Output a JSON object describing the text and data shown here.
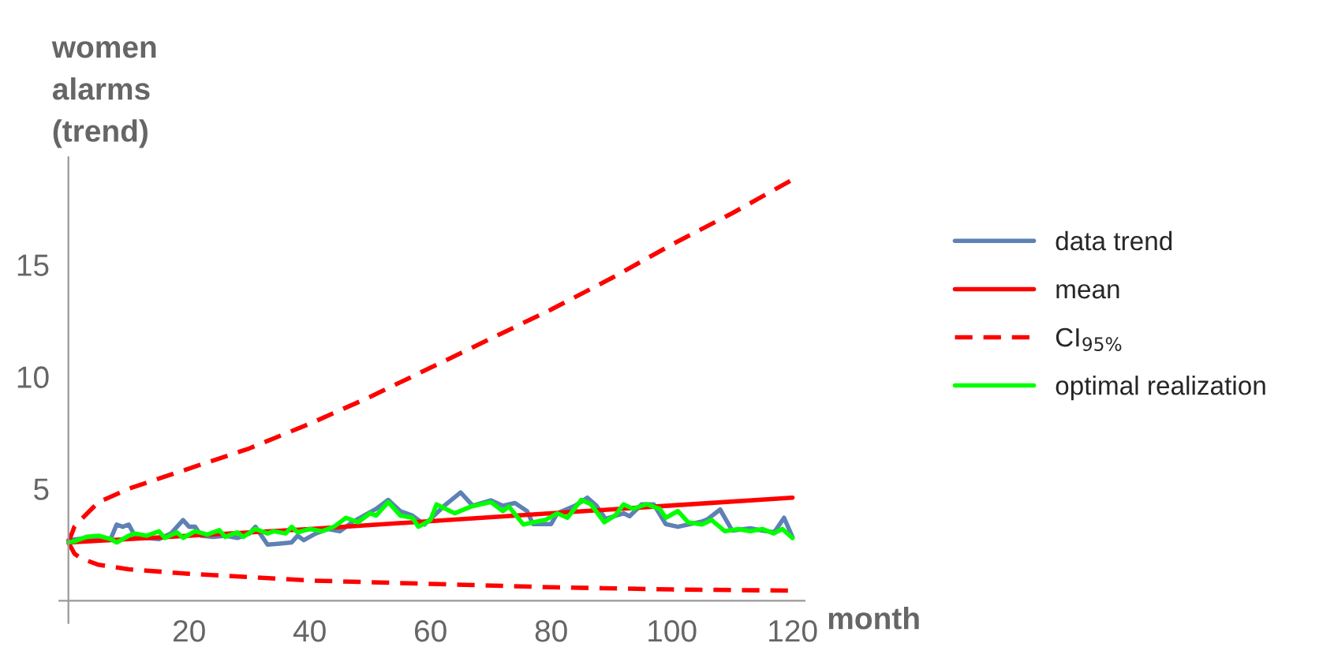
{
  "chart_data": {
    "type": "line",
    "xlabel": "month",
    "ylabel": "women\nalarms\n(trend)",
    "xlim": [
      -1.5,
      122
    ],
    "ylim": [
      -1.0,
      19.8
    ],
    "xticks": [
      20,
      40,
      60,
      80,
      100,
      120
    ],
    "yticks": [
      5,
      10,
      15
    ],
    "grid": false,
    "legend": "right",
    "line_style": "solid",
    "marker": "none",
    "series": [
      {
        "name": "data trend",
        "color": "#5e81b5",
        "x": [
          0,
          3,
          5,
          7,
          8,
          9,
          10,
          11,
          13,
          15,
          17,
          19,
          20,
          21,
          22,
          24,
          26,
          28,
          30,
          31,
          33,
          35,
          37,
          38,
          39,
          41,
          43,
          45,
          47,
          49,
          51,
          53,
          55,
          57,
          59,
          60,
          62.3,
          65,
          67,
          70,
          72,
          74,
          76,
          77,
          80,
          81,
          84,
          86,
          87.5,
          89,
          92,
          93,
          95,
          97,
          99,
          101,
          103,
          105,
          106,
          108,
          110,
          113,
          115,
          117,
          118.6,
          120
        ],
        "values": [
          2.7,
          2.8,
          2.85,
          2.75,
          3.4,
          3.3,
          3.4,
          2.9,
          2.8,
          2.75,
          3.0,
          3.6,
          3.3,
          3.3,
          2.9,
          2.85,
          2.9,
          2.8,
          3.0,
          3.3,
          2.5,
          2.55,
          2.6,
          2.9,
          2.7,
          3.0,
          3.2,
          3.1,
          3.5,
          3.8,
          4.1,
          4.5,
          4.0,
          3.8,
          3.4,
          3.65,
          4.24,
          4.83,
          4.24,
          4.48,
          4.24,
          4.36,
          4.0,
          3.42,
          3.42,
          3.9,
          4.24,
          4.6,
          4.24,
          3.65,
          3.9,
          3.77,
          4.3,
          4.3,
          3.42,
          3.3,
          3.42,
          3.53,
          3.65,
          4.07,
          3.13,
          3.23,
          3.13,
          3.06,
          3.7,
          2.83
        ]
      },
      {
        "name": "mean",
        "color": "#ff0000",
        "x": [
          0,
          20,
          40,
          60,
          80,
          100,
          120
        ],
        "values": [
          2.6,
          2.9,
          3.2,
          3.55,
          3.9,
          4.25,
          4.6
        ]
      },
      {
        "name": "CI$_{95%}$",
        "color": "#ff0000",
        "line_style": "dashed",
        "x": [
          0,
          1,
          2,
          5,
          10,
          20,
          30,
          40,
          50,
          60,
          70,
          80,
          90,
          100,
          110,
          120
        ],
        "values": [
          2.6,
          3.3,
          3.6,
          4.4,
          5.0,
          5.9,
          6.8,
          7.9,
          9.1,
          10.4,
          11.7,
          13.0,
          14.4,
          15.9,
          17.3,
          18.8
        ]
      },
      {
        "color": "#ff0000",
        "line_style": "dashed",
        "x": [
          0,
          1,
          2,
          5,
          10,
          20,
          40,
          60,
          80,
          100,
          120
        ],
        "values": [
          2.6,
          2.1,
          1.9,
          1.6,
          1.4,
          1.2,
          0.9,
          0.75,
          0.6,
          0.5,
          0.45
        ]
      },
      {
        "name": "optimal realization",
        "color": "#00ff00",
        "x": [
          0,
          1,
          3,
          5,
          7,
          8,
          10,
          11,
          13,
          15,
          16,
          18,
          19,
          21,
          23,
          25,
          26,
          28,
          29,
          31,
          33,
          34,
          36,
          37,
          38,
          40,
          42,
          44,
          45,
          46,
          48,
          50,
          51,
          53,
          55,
          57,
          58,
          60,
          61,
          64,
          66.7,
          70,
          72,
          73,
          75.4,
          77,
          79,
          81,
          82.7,
          85,
          86.6,
          88.8,
          90.6,
          92,
          93.6,
          95.8,
          98,
          99,
          101,
          102.7,
          105,
          106.6,
          108.8,
          111,
          113,
          115,
          116.9,
          118.3,
          120
        ],
        "values": [
          2.6,
          2.65,
          2.85,
          2.9,
          2.75,
          2.6,
          2.9,
          3.0,
          2.9,
          3.1,
          2.8,
          3.05,
          2.8,
          3.1,
          2.95,
          3.15,
          2.85,
          3.05,
          2.85,
          3.2,
          3.0,
          3.1,
          3.0,
          3.3,
          3.05,
          3.2,
          3.1,
          3.3,
          3.5,
          3.7,
          3.5,
          3.9,
          3.8,
          4.4,
          3.8,
          3.7,
          3.3,
          3.6,
          4.3,
          3.9,
          4.2,
          4.4,
          4.0,
          4.2,
          3.4,
          3.5,
          3.6,
          3.9,
          3.7,
          4.5,
          4.3,
          3.5,
          3.8,
          4.3,
          4.1,
          4.3,
          4.1,
          3.7,
          4.0,
          3.5,
          3.4,
          3.6,
          3.1,
          3.2,
          3.1,
          3.2,
          3.0,
          3.2,
          2.8
        ]
      }
    ]
  }
}
